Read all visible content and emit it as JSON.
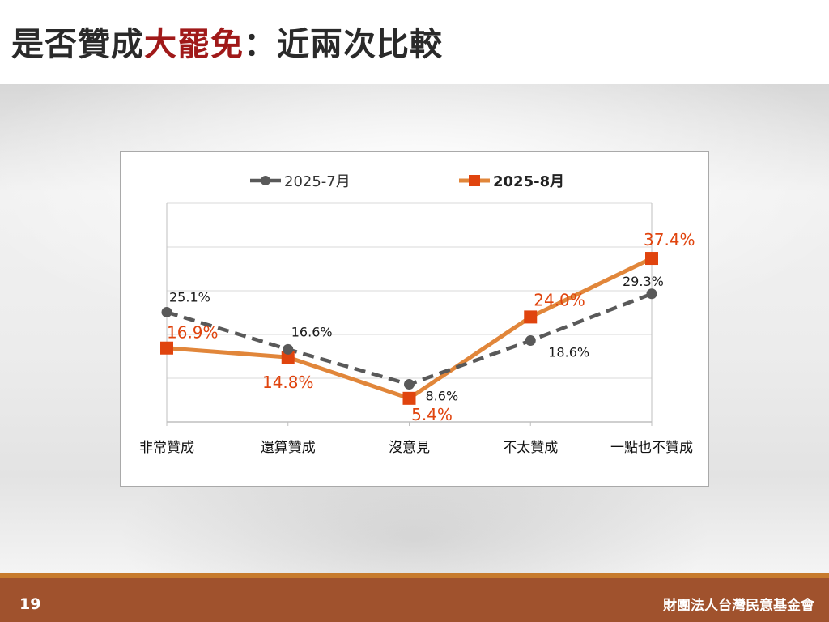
{
  "slide": {
    "title_prefix": "是否贊成",
    "title_accent": "大罷免",
    "title_suffix": "：近兩次比較",
    "page_number": "19",
    "organization": "財團法人台灣民意基金會"
  },
  "colors": {
    "title": "#2a2a2a",
    "title_accent": "#a01919",
    "series_jul": "#595959",
    "series_aug": "#e1863a",
    "marker_aug": "#e0440e",
    "label_aug": "#e0440e",
    "footer": "#a0522d"
  },
  "chart_data": {
    "type": "line",
    "title": "",
    "xlabel": "",
    "ylabel": "",
    "ylim": [
      0,
      50
    ],
    "grid": "horizontal",
    "legend": "top",
    "categories": [
      "非常贊成",
      "還算贊成",
      "沒意見",
      "不太贊成",
      "一點也不贊成"
    ],
    "series": [
      {
        "name": "2025-7月",
        "values": [
          25.1,
          16.6,
          8.6,
          18.6,
          29.3
        ],
        "labels": [
          "25.1%",
          "16.6%",
          "8.6%",
          "18.6%",
          "29.3%"
        ],
        "style": "dashed",
        "marker": "circle"
      },
      {
        "name": "2025-8月",
        "values": [
          16.9,
          14.8,
          5.4,
          24.0,
          37.4
        ],
        "labels": [
          "16.9%",
          "14.8%",
          "5.4%",
          "24.0%",
          "37.4%"
        ],
        "style": "solid",
        "marker": "square"
      }
    ]
  }
}
